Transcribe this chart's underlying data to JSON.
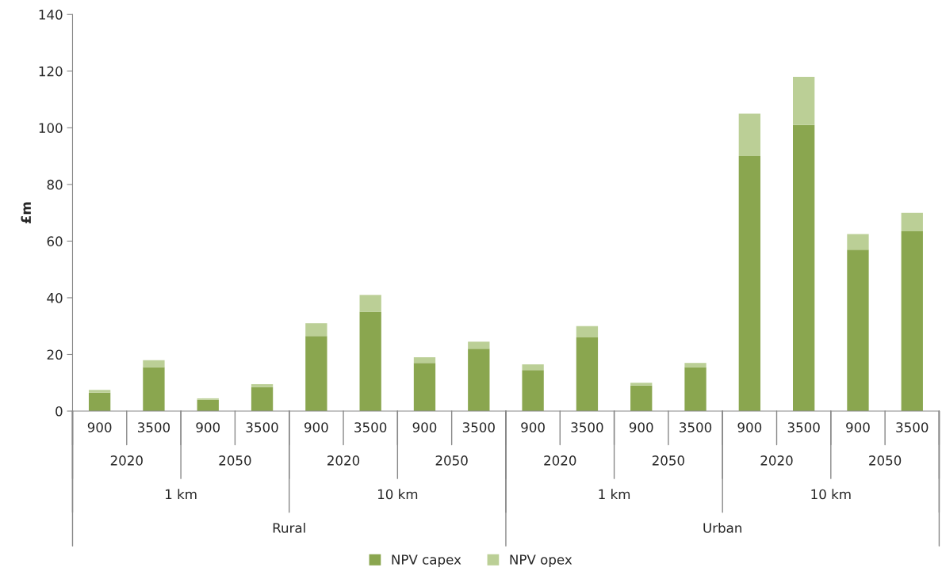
{
  "chart_data": {
    "type": "bar",
    "ylabel": "£m",
    "stacked": true,
    "categories": [
      "900",
      "3500",
      "900",
      "3500",
      "900",
      "3500",
      "900",
      "3500",
      "900",
      "3500",
      "900",
      "3500",
      "900",
      "3500",
      "900",
      "3500"
    ],
    "series": [
      {
        "name": "NPV capex",
        "color": "#8aa64f",
        "values": [
          6.5,
          15.5,
          4,
          8.5,
          26.5,
          35,
          17,
          22,
          14.5,
          26,
          9,
          15.5,
          90,
          101,
          57,
          63.5
        ]
      },
      {
        "name": "NPV opex",
        "color": "#bbcf96",
        "values": [
          1,
          2.5,
          0.5,
          1,
          4.5,
          6,
          2,
          2.5,
          2,
          4,
          1,
          1.5,
          15,
          17,
          5.5,
          6.5
        ]
      }
    ],
    "annotations": [
      "2020",
      "2050",
      "2020",
      "2050",
      "2020",
      "2050",
      "2020",
      "2050",
      "1 km",
      "10 km",
      "1 km",
      "10 km",
      "Rural",
      "Urban"
    ],
    "ylim": [
      0,
      140
    ],
    "yticks": [
      0,
      20,
      40,
      60,
      80,
      100,
      120,
      140
    ],
    "grid": false,
    "legend": "bottom"
  }
}
